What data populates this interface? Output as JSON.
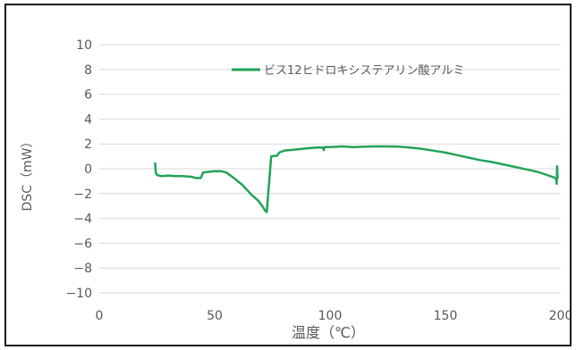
{
  "chart_data": {
    "type": "line",
    "title": "",
    "xlabel": "温度（℃）",
    "ylabel": "DSC（mW）",
    "xlim": [
      0,
      200
    ],
    "ylim": [
      -10,
      10
    ],
    "xticks": [
      "0",
      "50",
      "100",
      "150",
      "200"
    ],
    "yticks": [
      "10",
      "8",
      "6",
      "4",
      "2",
      "0",
      "−2",
      "−4",
      "−6",
      "−8",
      "−10"
    ],
    "grid": "horizontal",
    "legend_position": "top-right",
    "series": [
      {
        "name": "ビス12ヒドロキシステアリン酸アルミ",
        "color": "#22a35a",
        "points": [
          [
            24.2,
            0.5
          ],
          [
            24.5,
            -0.3
          ],
          [
            25.0,
            -0.5
          ],
          [
            27,
            -0.6
          ],
          [
            30,
            -0.55
          ],
          [
            33,
            -0.6
          ],
          [
            36,
            -0.6
          ],
          [
            40,
            -0.65
          ],
          [
            42,
            -0.75
          ],
          [
            44,
            -0.75
          ],
          [
            45,
            -0.3
          ],
          [
            47,
            -0.25
          ],
          [
            50,
            -0.2
          ],
          [
            53,
            -0.2
          ],
          [
            55,
            -0.3
          ],
          [
            58,
            -0.7
          ],
          [
            62,
            -1.3
          ],
          [
            66,
            -2.1
          ],
          [
            69,
            -2.6
          ],
          [
            71,
            -3.1
          ],
          [
            72,
            -3.4
          ],
          [
            72.6,
            -3.5
          ],
          [
            73.2,
            -2.0
          ],
          [
            74.5,
            1.0
          ],
          [
            77,
            1.05
          ],
          [
            78,
            1.3
          ],
          [
            80,
            1.45
          ],
          [
            85,
            1.55
          ],
          [
            90,
            1.65
          ],
          [
            95,
            1.72
          ],
          [
            97,
            1.7
          ],
          [
            97.3,
            1.5
          ],
          [
            97.6,
            1.75
          ],
          [
            100,
            1.75
          ],
          [
            105,
            1.8
          ],
          [
            110,
            1.75
          ],
          [
            115,
            1.78
          ],
          [
            120,
            1.8
          ],
          [
            125,
            1.8
          ],
          [
            130,
            1.78
          ],
          [
            135,
            1.7
          ],
          [
            140,
            1.6
          ],
          [
            145,
            1.45
          ],
          [
            150,
            1.3
          ],
          [
            155,
            1.1
          ],
          [
            160,
            0.9
          ],
          [
            165,
            0.7
          ],
          [
            170,
            0.55
          ],
          [
            175,
            0.35
          ],
          [
            180,
            0.15
          ],
          [
            185,
            -0.05
          ],
          [
            190,
            -0.25
          ],
          [
            194,
            -0.5
          ],
          [
            197,
            -0.7
          ],
          [
            198,
            -0.8
          ],
          [
            198.2,
            -1.2
          ],
          [
            198.4,
            0.2
          ],
          [
            198.6,
            -0.8
          ]
        ]
      }
    ]
  }
}
